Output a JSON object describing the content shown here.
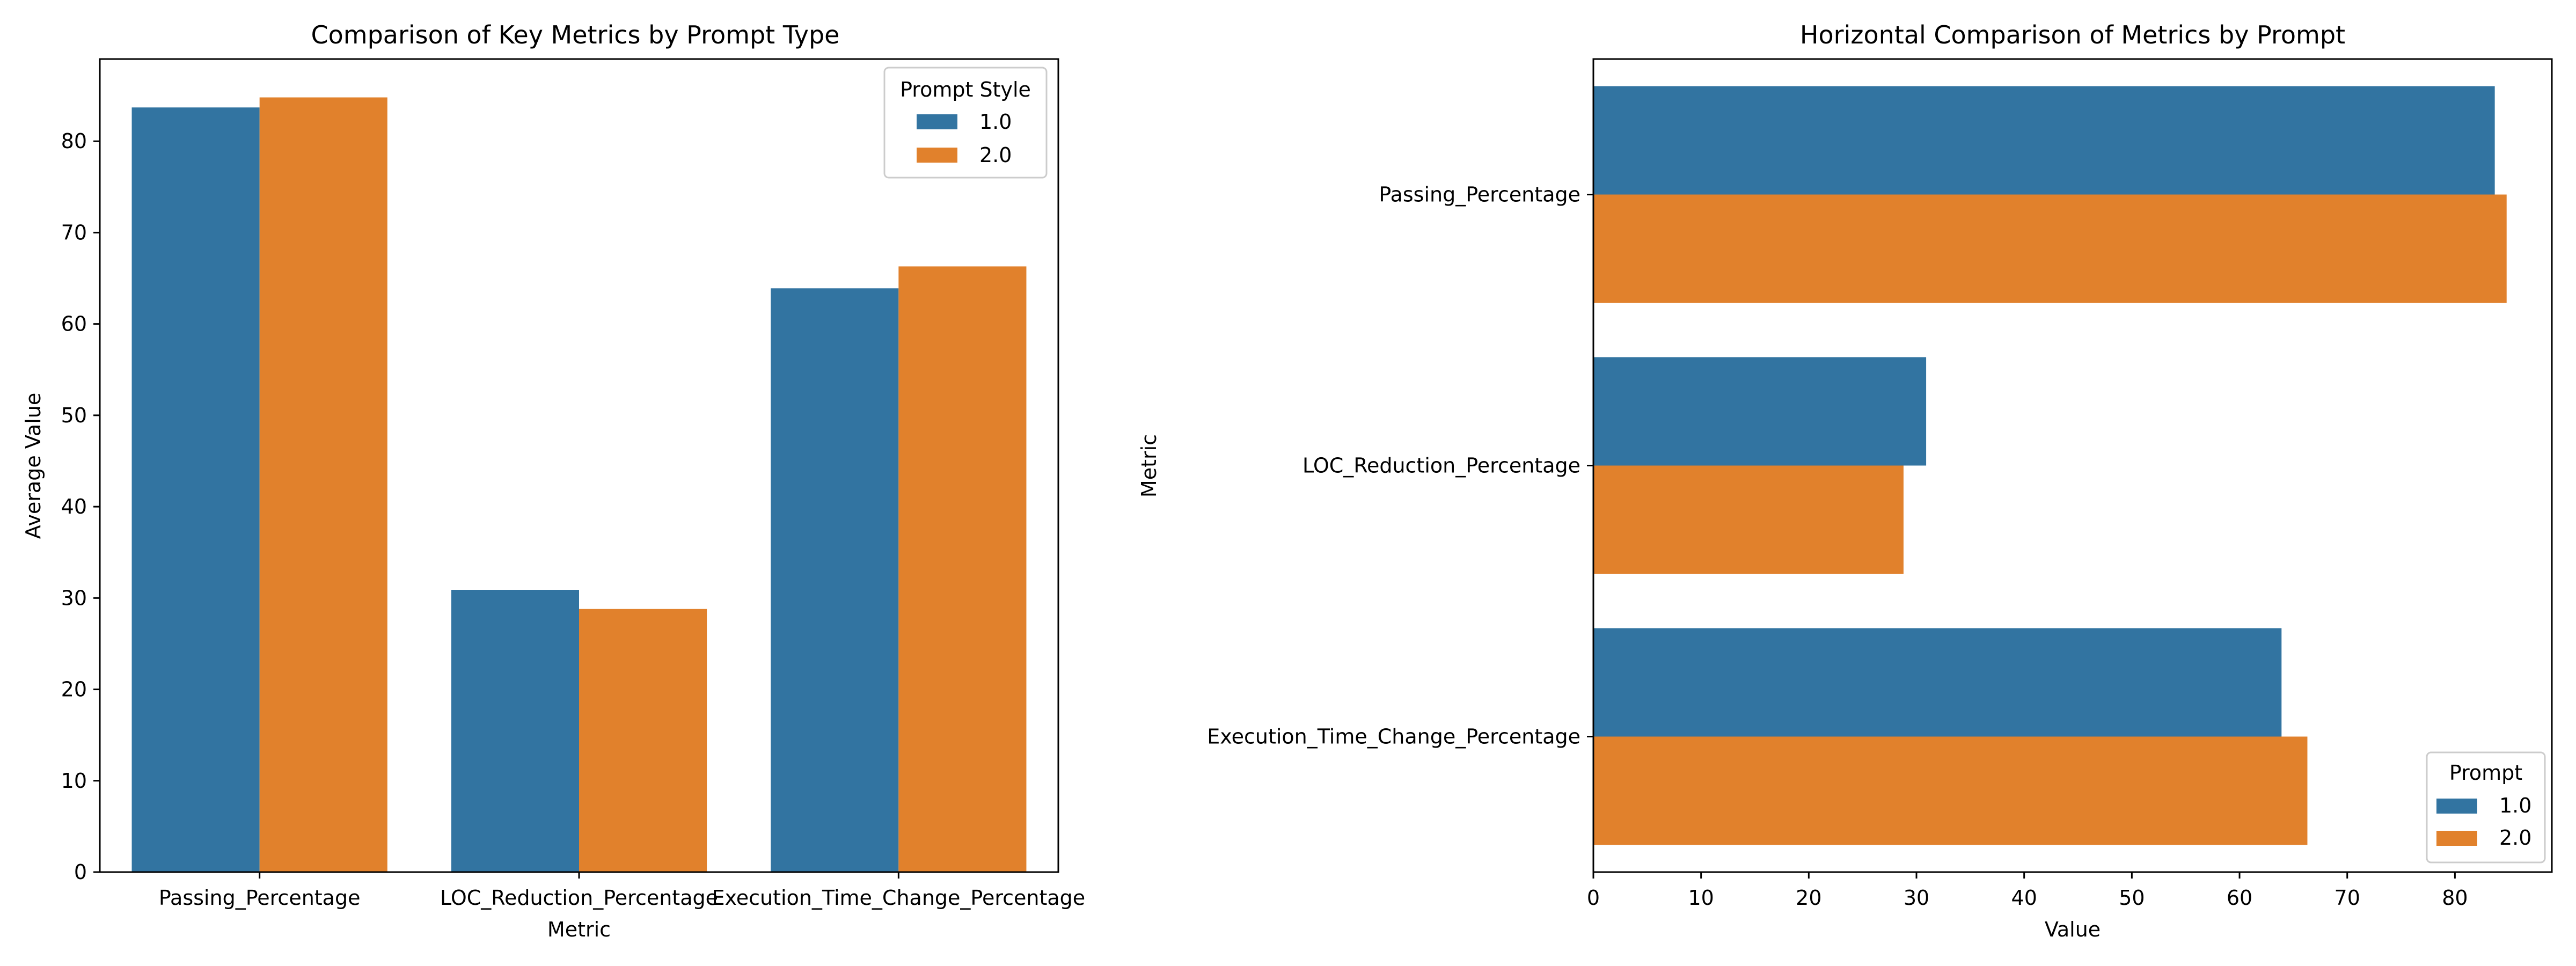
{
  "colors": {
    "series_1": "#3274a1",
    "series_2": "#e1812c",
    "axis": "#000000",
    "legend_border": "#cccccc"
  },
  "chart_data": [
    {
      "type": "bar",
      "orientation": "vertical",
      "title": "Comparison of Key Metrics by Prompt Type",
      "xlabel": "Metric",
      "ylabel": "Average Value",
      "categories": [
        "Passing_Percentage",
        "LOC_Reduction_Percentage",
        "Execution_Time_Change_Percentage"
      ],
      "series": [
        {
          "name": "1.0",
          "values": [
            83.7,
            30.9,
            63.9
          ]
        },
        {
          "name": "2.0",
          "values": [
            84.8,
            28.8,
            66.3
          ]
        }
      ],
      "ylim": [
        0,
        89
      ],
      "yticks": [
        "0",
        "10",
        "20",
        "30",
        "40",
        "50",
        "60",
        "70",
        "80"
      ],
      "legend": {
        "title": "Prompt Style",
        "location": "top-right"
      },
      "grid": false
    },
    {
      "type": "bar",
      "orientation": "horizontal",
      "title": "Horizontal Comparison of Metrics by Prompt",
      "xlabel": "Value",
      "ylabel": "Metric",
      "categories": [
        "Passing_Percentage",
        "LOC_Reduction_Percentage",
        "Execution_Time_Change_Percentage"
      ],
      "series": [
        {
          "name": "1.0",
          "values": [
            83.7,
            30.9,
            63.9
          ]
        },
        {
          "name": "2.0",
          "values": [
            84.8,
            28.8,
            66.3
          ]
        }
      ],
      "xlim": [
        0,
        89
      ],
      "xticks": [
        "0",
        "10",
        "20",
        "30",
        "40",
        "50",
        "60",
        "70",
        "80"
      ],
      "legend": {
        "title": "Prompt",
        "location": "lower-right"
      },
      "grid": false
    }
  ]
}
